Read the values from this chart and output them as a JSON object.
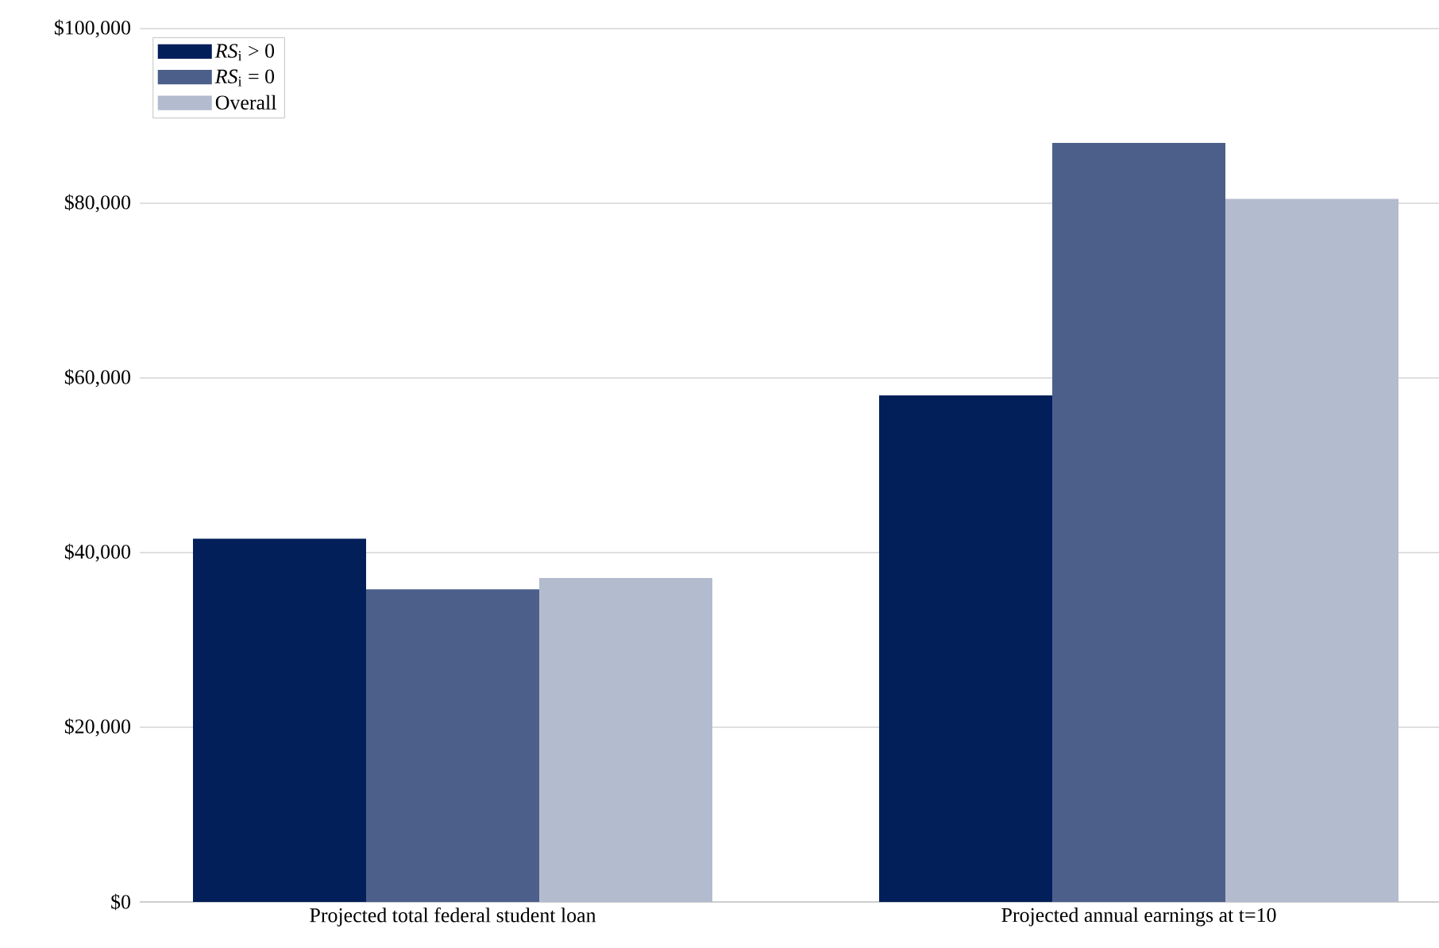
{
  "chart_data": {
    "type": "bar",
    "categories": [
      "Projected total federal student loan",
      "Projected annual earnings at t=10"
    ],
    "series": [
      {
        "name": "*RS*$_{i}$ > 0",
        "color": "#031f5a",
        "values": [
          41600,
          58000
        ]
      },
      {
        "name": "*RS*$_{i}$ = 0",
        "color": "#4c5f8a",
        "values": [
          35800,
          86900
        ]
      },
      {
        "name": "Overall",
        "color": "#b3bbcf",
        "values": [
          37100,
          80500
        ]
      }
    ],
    "ylim": [
      0,
      100000
    ],
    "yticks": [
      {
        "value": 0,
        "label": "$0"
      },
      {
        "value": 20000,
        "label": "$20,000"
      },
      {
        "value": 40000,
        "label": "$40,000"
      },
      {
        "value": 60000,
        "label": "$60,000"
      },
      {
        "value": 80000,
        "label": "$80,000"
      },
      {
        "value": 100000,
        "label": "$100,000"
      }
    ],
    "grid": "y",
    "legend": "top left"
  }
}
